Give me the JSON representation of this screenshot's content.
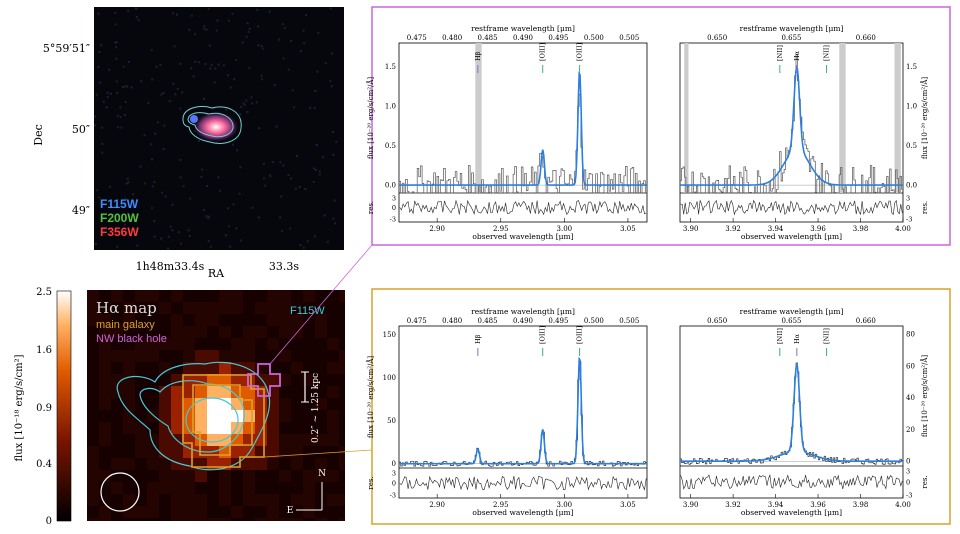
{
  "top_image": {
    "dec_label": "Dec",
    "ra_label": "RA",
    "dec_ticks": [
      "5°59′51″",
      "50″",
      "49″"
    ],
    "ra_ticks": [
      "1h48m33.4s",
      "33.3s"
    ],
    "filters": [
      {
        "name": "F115W",
        "color": "#3f8cff"
      },
      {
        "name": "F200W",
        "color": "#52c23c"
      },
      {
        "name": "F356W",
        "color": "#ff3b3b"
      }
    ]
  },
  "halpha_map": {
    "title": "Hα map",
    "legend": [
      {
        "label": "main galaxy",
        "color": "#d9a22b"
      },
      {
        "label": "NW black hole",
        "color": "#cc66dd"
      }
    ],
    "contour_label": "F115W",
    "scale_bar": "0.2″ ~ 1.25 kpc",
    "north": "N",
    "east": "E",
    "colorbar": {
      "label": "flux [10⁻¹⁸ erg/s/cm²]",
      "ticks": [
        "2.5",
        "1.6",
        "0.9",
        "0.4",
        "0"
      ]
    }
  },
  "chart_data": [
    {
      "panel": "top-left (NW black hole)",
      "type": "line",
      "top_axis_label": "restframe wavelength [μm]",
      "xlabel": "observed wavelength [μm]",
      "ylabel": "flux [10⁻²⁰ erg/s/cm²/Å]",
      "xlim": [
        2.87,
        3.065
      ],
      "ylim": [
        -0.1,
        1.8
      ],
      "x_ticks": [
        "2.90",
        "2.95",
        "3.00",
        "3.05"
      ],
      "y_ticks": [
        "0.0",
        "0.5",
        "1.0",
        "1.5"
      ],
      "top_ticks": [
        "0.475",
        "0.480",
        "0.485",
        "0.490",
        "0.495",
        "0.500",
        "0.505"
      ],
      "lines": [
        {
          "label": "Hβ",
          "x": 2.932
        },
        {
          "label": "[OIII]",
          "x": 2.983
        },
        {
          "label": "[OIII]",
          "x": 3.012
        }
      ],
      "model_peaks": [
        {
          "x": 2.983,
          "y": 0.45
        },
        {
          "x": 3.012,
          "y": 1.45
        }
      ],
      "residual_ylabel": "res.",
      "residual_ticks": [
        "3",
        "0",
        "-3"
      ]
    },
    {
      "panel": "top-right (NW black hole)",
      "type": "line",
      "top_axis_label": "restframe wavelength [μm]",
      "xlabel": "observed wavelength [μm]",
      "ylabel": "flux [10⁻²⁰ erg/s/cm²/Å]",
      "xlim": [
        3.895,
        4.0
      ],
      "ylim": [
        -0.1,
        1.8
      ],
      "x_ticks": [
        "3.90",
        "3.92",
        "3.94",
        "3.96",
        "3.98",
        "4.00"
      ],
      "y_ticks": [
        "0.0",
        "0.5",
        "1.0",
        "1.5"
      ],
      "top_ticks": [
        "0.650",
        "0.655",
        "0.660"
      ],
      "lines": [
        {
          "label": "[NII]",
          "x": 3.942
        },
        {
          "label": "Hα",
          "x": 3.95
        },
        {
          "label": "[NII]",
          "x": 3.964
        }
      ],
      "model_peaks": [
        {
          "x": 3.95,
          "y": 1.05
        },
        {
          "x": 3.95,
          "y": 0.45
        }
      ],
      "residual_ylabel": "res.",
      "residual_ticks": [
        "3",
        "0",
        "-3"
      ]
    },
    {
      "panel": "bottom-left (main galaxy)",
      "type": "line",
      "top_axis_label": "restframe wavelength [μm]",
      "xlabel": "observed wavelength [μm]",
      "ylabel": "flux [10⁻²⁰ erg/s/cm²/Å]",
      "xlim": [
        2.87,
        3.065
      ],
      "ylim": [
        -5,
        160
      ],
      "x_ticks": [
        "2.90",
        "2.95",
        "3.00",
        "3.05"
      ],
      "y_ticks": [
        "0",
        "50",
        "100",
        "150"
      ],
      "top_ticks": [
        "0.475",
        "0.480",
        "0.485",
        "0.490",
        "0.495",
        "0.500",
        "0.505"
      ],
      "lines": [
        {
          "label": "Hβ",
          "x": 2.932
        },
        {
          "label": "[OIII]",
          "x": 2.983
        },
        {
          "label": "[OIII]",
          "x": 3.012
        }
      ],
      "model_peaks": [
        {
          "x": 2.932,
          "y": 17
        },
        {
          "x": 2.983,
          "y": 40
        },
        {
          "x": 3.012,
          "y": 125
        }
      ],
      "residual_ylabel": "res.",
      "residual_ticks": [
        "3",
        "0",
        "-3"
      ]
    },
    {
      "panel": "bottom-right (main galaxy)",
      "type": "line",
      "top_axis_label": "restframe wavelength [μm]",
      "xlabel": "observed wavelength [μm]",
      "ylabel": "flux [10⁻²⁰ erg/s/cm²/Å]",
      "xlim": [
        3.895,
        4.0
      ],
      "ylim": [
        -3,
        85
      ],
      "x_ticks": [
        "3.90",
        "3.92",
        "3.94",
        "3.96",
        "3.98",
        "4.00"
      ],
      "y_ticks": [
        "0",
        "20",
        "40",
        "60",
        "80"
      ],
      "top_ticks": [
        "0.650",
        "0.655",
        "0.660"
      ],
      "lines": [
        {
          "label": "[NII]",
          "x": 3.942
        },
        {
          "label": "Hα",
          "x": 3.95
        },
        {
          "label": "[NII]",
          "x": 3.964
        }
      ],
      "model_peaks": [
        {
          "x": 3.95,
          "y": 55
        },
        {
          "x": 3.95,
          "y": 6
        }
      ],
      "residual_ylabel": "res.",
      "residual_ticks": [
        "3",
        "0",
        "-3"
      ]
    }
  ]
}
